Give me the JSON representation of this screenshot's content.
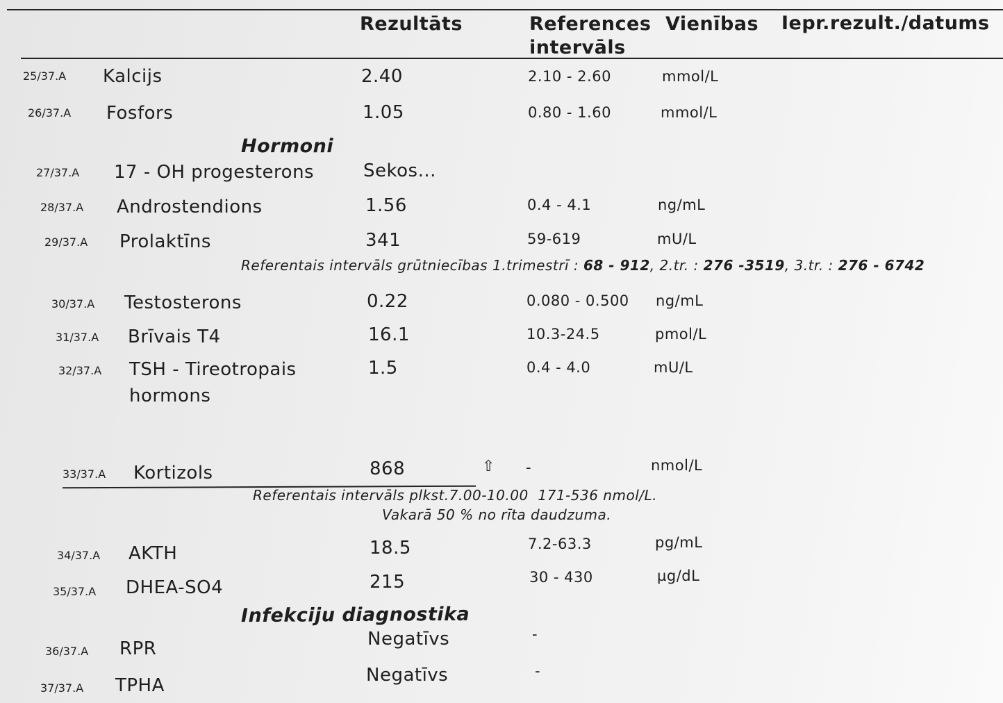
{
  "header": {
    "result": "Rezultāts",
    "reference": "References intervāls",
    "units": "Vienības",
    "previous": "Iepr.rezult./datums"
  },
  "sections": [
    "Hormoni",
    "Infekciju diagnostika"
  ],
  "rows": [
    {
      "code": "25/37.A",
      "name": "Kalcijs",
      "result": "2.40",
      "reference": "2.10 - 2.60",
      "units": "mmol/L"
    },
    {
      "code": "26/37.A",
      "name": "Fosfors",
      "result": "1.05",
      "reference": "0.80 - 1.60",
      "units": "mmol/L"
    },
    {
      "code": "27/37.A",
      "name": "17 - OH progesterons",
      "result": "Sekos..."
    },
    {
      "code": "28/37.A",
      "name": "Androstendions",
      "result": "1.56",
      "reference": "0.4 - 4.1",
      "units": "ng/mL"
    },
    {
      "code": "29/37.A",
      "name": "Prolaktīns",
      "result": "341",
      "reference": "59-619",
      "units": "mU/L"
    },
    {
      "code": "30/37.A",
      "name": "Testosterons",
      "result": "0.22",
      "reference": "0.080 - 0.500",
      "units": "ng/mL"
    },
    {
      "code": "31/37.A",
      "name": "Brīvais T4",
      "result": "16.1",
      "reference": "10.3-24.5",
      "units": "pmol/L"
    },
    {
      "code": "32/37.A",
      "name": "TSH - Tireotropais hormons",
      "result": "1.5",
      "reference": "0.4 - 4.0",
      "units": "mU/L"
    },
    {
      "code": "33/37.A",
      "name": "Kortizols",
      "result": "868",
      "flag": "⇧",
      "reference": "-",
      "units": "nmol/L"
    },
    {
      "code": "34/37.A",
      "name": "AKTH",
      "result": "18.5",
      "reference": "7.2-63.3",
      "units": "pg/mL"
    },
    {
      "code": "35/37.A",
      "name": "DHEA-SO4",
      "result": "215",
      "reference": "30 - 430",
      "units": "µg/dL"
    },
    {
      "code": "36/37.A",
      "name": "RPR",
      "result": "Negatīvs",
      "reference": "-"
    },
    {
      "code": "37/37.A",
      "name": "TPHA",
      "result": "Negatīvs",
      "reference": "-"
    }
  ],
  "notes": [
    [
      "Referentais intervāls grūtniecības 1.trimestrī : ",
      "68 - 912",
      ", 2.tr. : ",
      "276 -3519",
      ", 3.tr. : ",
      "276 - 6742"
    ],
    [
      "Referentais intervāls plkst.7.00-10.00  171-536 nmol/L.",
      "Vakarā 50 % no rīta daudzuma."
    ]
  ]
}
